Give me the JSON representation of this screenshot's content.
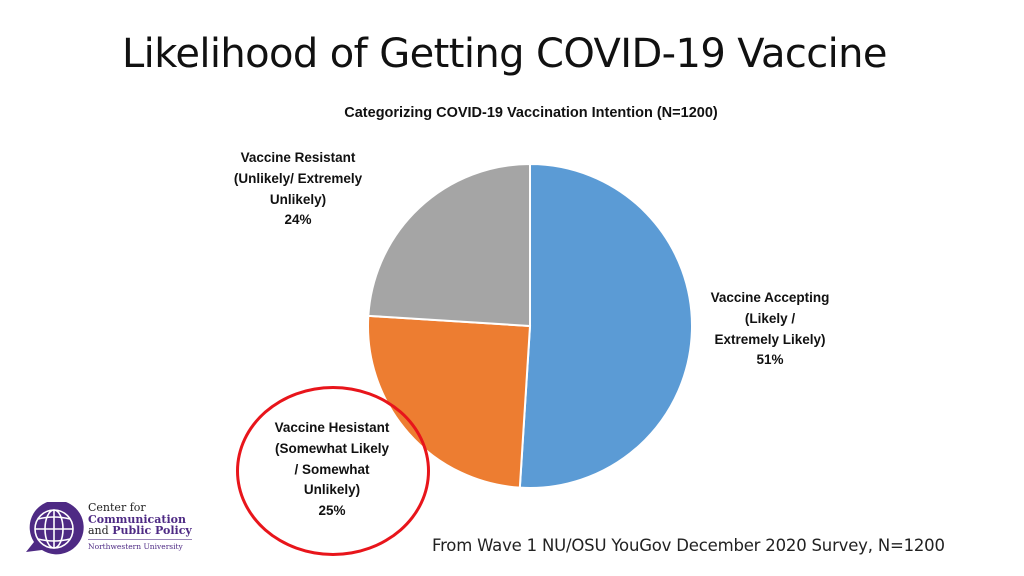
{
  "slide": {
    "title": "Likelihood of Getting COVID-19 Vaccine",
    "source_note": "From Wave 1 NU/OSU YouGov December 2020 Survey, N=1200"
  },
  "labels": {
    "resistant": {
      "line1": "Vaccine Resistant",
      "line2": "(Unlikely/ Extremely",
      "line3": "Unlikely)",
      "pct": "24%"
    },
    "accepting": {
      "line1": "Vaccine Accepting",
      "line2": "(Likely /",
      "line3": "Extremely Likely)",
      "pct": "51%"
    },
    "hesistant": {
      "line1": "Vaccine Hesistant",
      "line2": "(Somewhat Likely",
      "line3": "/ Somewhat",
      "line4": "Unlikely)",
      "pct": "25%"
    }
  },
  "logo": {
    "line1": "Center for",
    "line2": "Communication",
    "line3_a": "and ",
    "line3_b": "Public Policy",
    "line4": "Northwestern University",
    "icon": "globe-speech-bubble-icon"
  },
  "colors": {
    "accepting": "#5b9bd5",
    "hesistant": "#ed7d31",
    "resistant": "#a5a5a5",
    "highlight": "#e8151b",
    "logo_purple": "#4e2a84"
  },
  "chart_data": {
    "type": "pie",
    "title": "Categorizing COVID-19 Vaccination Intention (N=1200)",
    "categories": [
      "Vaccine Accepting (Likely / Extremely Likely)",
      "Vaccine Hesistant (Somewhat Likely / Somewhat Unlikely)",
      "Vaccine Resistant (Unlikely/ Extremely Unlikely)"
    ],
    "values": [
      51,
      25,
      24
    ],
    "unit": "%",
    "colors": [
      "#5b9bd5",
      "#ed7d31",
      "#a5a5a5"
    ],
    "start_angle_deg": 0,
    "direction": "clockwise",
    "highlighted_category": "Vaccine Hesistant (Somewhat Likely / Somewhat Unlikely)",
    "legend": "none (data labels beside slices)"
  }
}
